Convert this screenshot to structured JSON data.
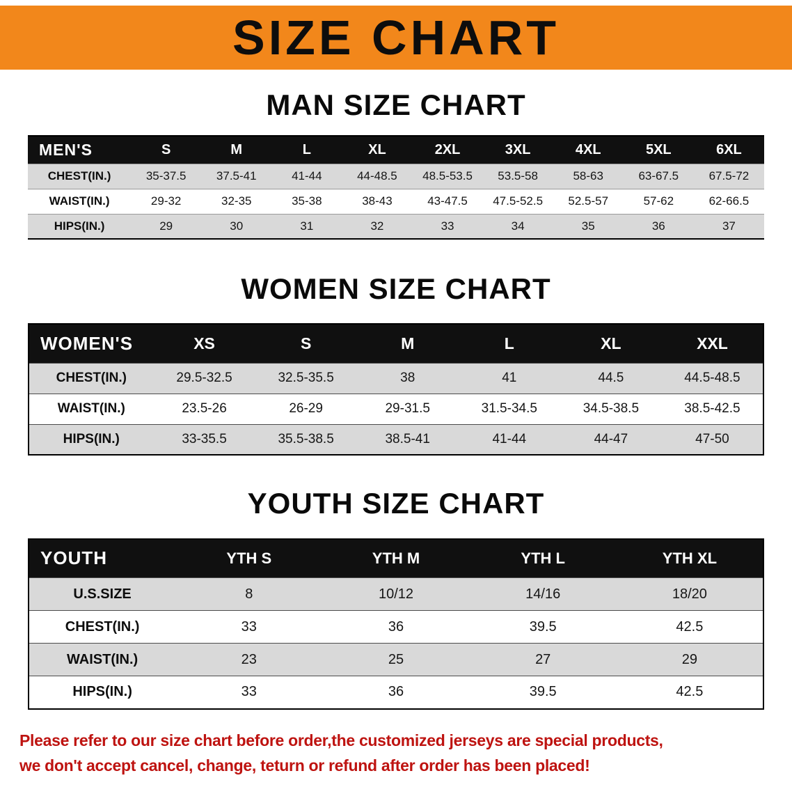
{
  "banner": {
    "title": "SIZE CHART"
  },
  "sections": {
    "men": {
      "heading": "MAN SIZE CHART"
    },
    "women": {
      "heading": "WOMEN SIZE CHART"
    },
    "youth": {
      "heading": "YOUTH SIZE CHART"
    }
  },
  "tables": {
    "men": {
      "corner": "MEN'S",
      "sizes": [
        "S",
        "M",
        "L",
        "XL",
        "2XL",
        "3XL",
        "4XL",
        "5XL",
        "6XL"
      ],
      "rows": [
        {
          "label": "CHEST(IN.)",
          "values": [
            "35-37.5",
            "37.5-41",
            "41-44",
            "44-48.5",
            "48.5-53.5",
            "53.5-58",
            "58-63",
            "63-67.5",
            "67.5-72"
          ]
        },
        {
          "label": "WAIST(IN.)",
          "values": [
            "29-32",
            "32-35",
            "35-38",
            "38-43",
            "43-47.5",
            "47.5-52.5",
            "52.5-57",
            "57-62",
            "62-66.5"
          ]
        },
        {
          "label": "HIPS(IN.)",
          "values": [
            "29",
            "30",
            "31",
            "32",
            "33",
            "34",
            "35",
            "36",
            "37"
          ]
        }
      ]
    },
    "women": {
      "corner": "WOMEN'S",
      "sizes": [
        "XS",
        "S",
        "M",
        "L",
        "XL",
        "XXL"
      ],
      "rows": [
        {
          "label": "CHEST(IN.)",
          "values": [
            "29.5-32.5",
            "32.5-35.5",
            "38",
            "41",
            "44.5",
            "44.5-48.5"
          ]
        },
        {
          "label": "WAIST(IN.)",
          "values": [
            "23.5-26",
            "26-29",
            "29-31.5",
            "31.5-34.5",
            "34.5-38.5",
            "38.5-42.5"
          ]
        },
        {
          "label": "HIPS(IN.)",
          "values": [
            "33-35.5",
            "35.5-38.5",
            "38.5-41",
            "41-44",
            "44-47",
            "47-50"
          ]
        }
      ]
    },
    "youth": {
      "corner": "YOUTH",
      "sizes": [
        "YTH S",
        "YTH M",
        "YTH L",
        "YTH XL"
      ],
      "rows": [
        {
          "label": "U.S.SIZE",
          "values": [
            "8",
            "10/12",
            "14/16",
            "18/20"
          ]
        },
        {
          "label": "CHEST(IN.)",
          "values": [
            "33",
            "36",
            "39.5",
            "42.5"
          ]
        },
        {
          "label": "WAIST(IN.)",
          "values": [
            "23",
            "25",
            "27",
            "29"
          ]
        },
        {
          "label": "HIPS(IN.)",
          "values": [
            "33",
            "36",
            "39.5",
            "42.5"
          ]
        }
      ]
    }
  },
  "footer": {
    "line1": "Please refer to our size chart before order,the customized jerseys are special products,",
    "line2": "we don't accept cancel, change, teturn or refund after order has been placed!"
  },
  "colors": {
    "banner_bg": "#F2871B",
    "header_bg": "#101010",
    "header_text": "#FFFFFF",
    "row_shade": "#D9D9D9",
    "footer_text": "#BE1310",
    "text": "#0A0A0A"
  }
}
